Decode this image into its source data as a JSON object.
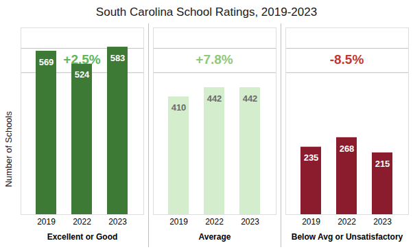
{
  "chart_data": [
    {
      "type": "bar",
      "title": "South Carolina School Ratings, 2019-2023",
      "ylabel": "Number of Schools",
      "xlabel": "Excellent or Good",
      "categories": [
        "2019",
        "2022",
        "2023"
      ],
      "values": [
        569,
        524,
        583
      ],
      "color": "#3d7a35",
      "ylim": [
        0,
        650
      ],
      "tick_labels": "x",
      "data_labels": true,
      "annotations": [
        {
          "text": "+2.5%",
          "color": "#5cb85c"
        }
      ]
    },
    {
      "type": "bar",
      "xlabel": "Average",
      "categories": [
        "2019",
        "2022",
        "2023"
      ],
      "values": [
        410,
        442,
        442
      ],
      "color": "#d4edcc",
      "ylim": [
        0,
        650
      ],
      "tick_labels": "x",
      "data_labels": true,
      "annotations": [
        {
          "text": "+7.8%",
          "color": "#90c878"
        }
      ]
    },
    {
      "type": "bar",
      "xlabel": "Below Avg or Unsatisfactory",
      "categories": [
        "2019",
        "2022",
        "2023"
      ],
      "values": [
        235,
        268,
        215
      ],
      "color": "#8b1c2e",
      "ylim": [
        0,
        650
      ],
      "tick_labels": "x",
      "data_labels": true,
      "annotations": [
        {
          "text": "-8.5%",
          "color": "#c0392b"
        }
      ]
    }
  ]
}
